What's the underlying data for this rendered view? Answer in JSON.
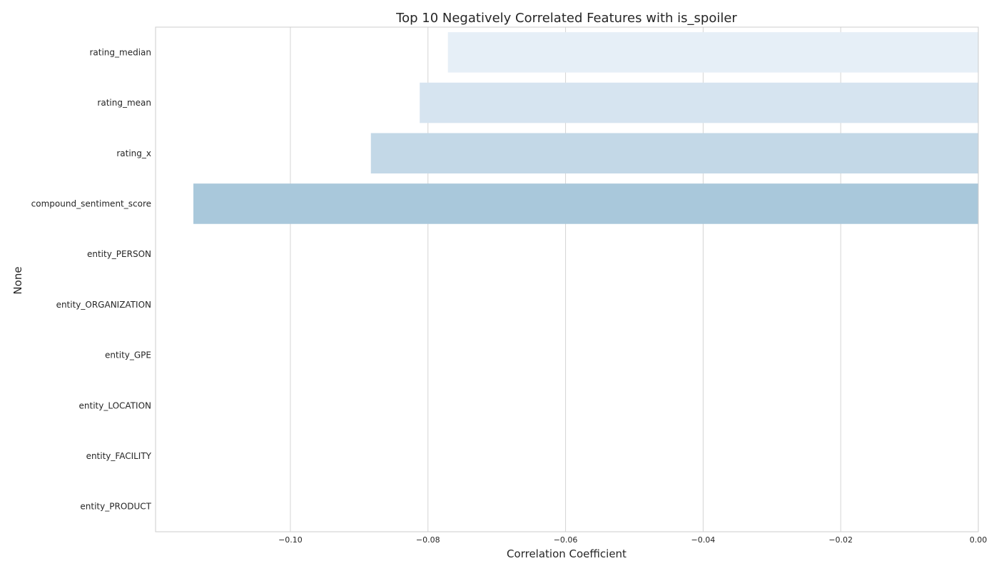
{
  "chart_data": {
    "type": "bar",
    "orientation": "horizontal",
    "title": "Top 10 Negatively Correlated Features with is_spoiler",
    "xlabel": "Correlation Coefficient",
    "ylabel": "None",
    "categories": [
      "rating_median",
      "rating_mean",
      "rating_x",
      "compound_sentiment_score",
      "entity_PERSON",
      "entity_ORGANIZATION",
      "entity_GPE",
      "entity_LOCATION",
      "entity_FACILITY",
      "entity_PRODUCT"
    ],
    "values": [
      -0.0771,
      -0.0812,
      -0.0883,
      -0.1141,
      0,
      0,
      0,
      0,
      0,
      0
    ],
    "colors": [
      "#e6eff7",
      "#d6e4f0",
      "#c3d8e7",
      "#a9c8db",
      "#94b9d3",
      "#7ea9ca",
      "#6798c1",
      "#5087ba",
      "#3c74ad",
      "#2b61a0"
    ],
    "xlim": [
      -0.1196,
      0.0
    ],
    "xticks": [
      -0.1,
      -0.08,
      -0.06,
      -0.04,
      -0.02,
      0.0
    ],
    "xtick_labels": [
      "−0.10",
      "−0.08",
      "−0.06",
      "−0.04",
      "−0.02",
      "0.00"
    ],
    "grid": "vertical",
    "legend": "none"
  }
}
